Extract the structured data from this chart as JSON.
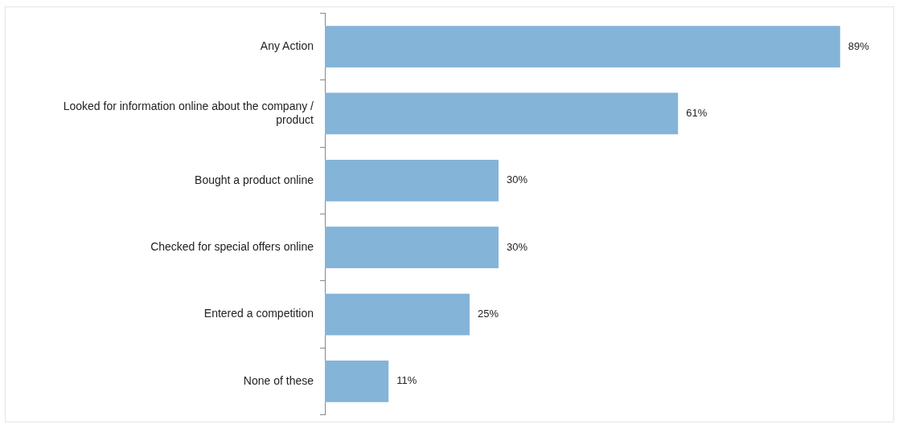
{
  "chart_data": {
    "type": "bar",
    "orientation": "horizontal",
    "categories": [
      "Any Action",
      "Looked for information online about the company / product",
      "Bought a product online",
      "Checked for special offers online",
      "Entered a competition",
      "None of these"
    ],
    "values": [
      89,
      61,
      30,
      30,
      25,
      11
    ],
    "value_labels": [
      "89%",
      "61%",
      "30%",
      "30%",
      "25%",
      "11%"
    ],
    "color": "#84b4d8",
    "tick_labels": "y",
    "legend": false
  }
}
